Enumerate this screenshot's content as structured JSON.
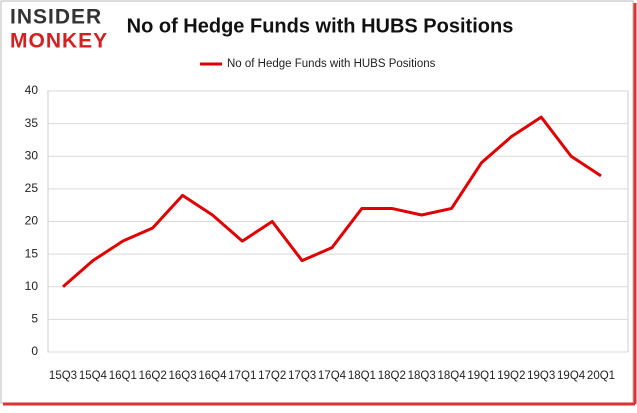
{
  "logo": {
    "line1": "INSIDER",
    "line2": "MONKEY"
  },
  "chart_data": {
    "type": "line",
    "title": "No of Hedge Funds with HUBS Positions",
    "categories": [
      "15Q3",
      "15Q4",
      "16Q1",
      "16Q2",
      "16Q3",
      "16Q4",
      "17Q1",
      "17Q2",
      "17Q3",
      "17Q4",
      "18Q1",
      "18Q2",
      "18Q3",
      "18Q4",
      "19Q1",
      "19Q2",
      "19Q3",
      "19Q4",
      "20Q1"
    ],
    "series": [
      {
        "name": "No of Hedge Funds with HUBS Positions",
        "color": "#e00000",
        "values": [
          10,
          14,
          17,
          19,
          24,
          21,
          17,
          20,
          14,
          16,
          22,
          22,
          21,
          22,
          29,
          33,
          36,
          30,
          27
        ]
      }
    ],
    "ylim": [
      0,
      40
    ],
    "yticks": [
      0,
      5,
      10,
      15,
      20,
      25,
      30,
      35,
      40
    ],
    "grid": true,
    "legend": "top"
  }
}
